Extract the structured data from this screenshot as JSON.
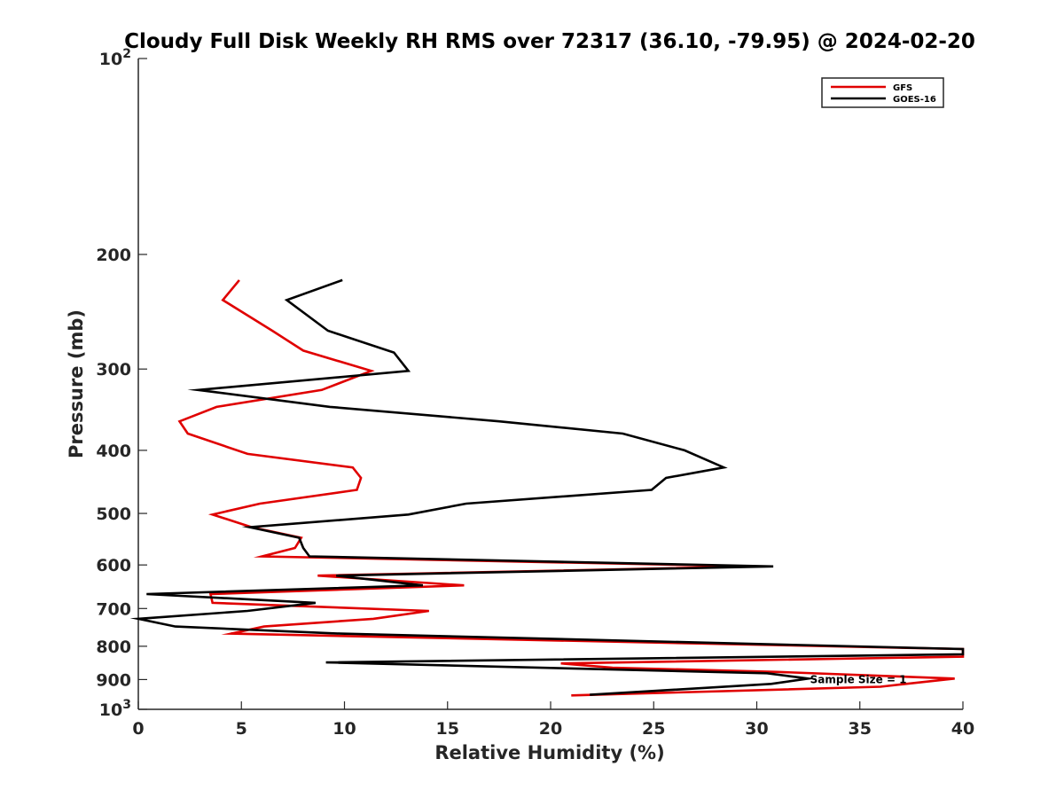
{
  "chart_data": {
    "type": "line",
    "title": "Cloudy Full Disk Weekly RH RMS over 72317 (36.10, -79.95) @ 2024-02-20",
    "xlabel": "Relative Humidity (%)",
    "ylabel": "Pressure (mb)",
    "xlim": [
      0,
      40
    ],
    "ylim": [
      100,
      1000
    ],
    "yscale": "log",
    "y_reversed": true,
    "grid": false,
    "legend_position": "top-right",
    "x_ticks": [
      0,
      5,
      10,
      15,
      20,
      25,
      30,
      35,
      40
    ],
    "y_ticks": [
      {
        "value": 100,
        "label": "10",
        "sup": "2"
      },
      {
        "value": 200,
        "label": "200"
      },
      {
        "value": 300,
        "label": "300"
      },
      {
        "value": 400,
        "label": "400"
      },
      {
        "value": 500,
        "label": "500"
      },
      {
        "value": 600,
        "label": "600"
      },
      {
        "value": 700,
        "label": "700"
      },
      {
        "value": 800,
        "label": "800"
      },
      {
        "value": 900,
        "label": "900"
      },
      {
        "value": 1000,
        "label": "10",
        "sup": "3"
      }
    ],
    "series": [
      {
        "name": "GFS",
        "color": "#e00000",
        "points": [
          [
            4.9,
            219
          ],
          [
            4.1,
            235
          ],
          [
            6.5,
            262
          ],
          [
            8.0,
            281
          ],
          [
            11.3,
            302
          ],
          [
            8.9,
            323
          ],
          [
            3.8,
            343
          ],
          [
            2.0,
            361
          ],
          [
            2.4,
            377
          ],
          [
            5.3,
            405
          ],
          [
            10.4,
            425
          ],
          [
            10.8,
            441
          ],
          [
            10.6,
            460
          ],
          [
            5.9,
            483
          ],
          [
            3.6,
            502
          ],
          [
            5.5,
            525
          ],
          [
            7.9,
            545
          ],
          [
            7.6,
            565
          ],
          [
            6.0,
            582
          ],
          [
            30.0,
            603
          ],
          [
            8.7,
            623
          ],
          [
            15.8,
            645
          ],
          [
            3.5,
            665
          ],
          [
            3.6,
            686
          ],
          [
            14.1,
            706
          ],
          [
            11.4,
            726
          ],
          [
            6.1,
            746
          ],
          [
            4.5,
            765
          ],
          [
            40.0,
            808
          ],
          [
            40.0,
            830
          ],
          [
            20.5,
            850
          ],
          [
            23.0,
            863
          ],
          [
            31.0,
            876
          ],
          [
            39.6,
            897
          ],
          [
            36.0,
            923
          ],
          [
            21.0,
            952
          ]
        ]
      },
      {
        "name": "GOES-16",
        "color": "#000000",
        "points": [
          [
            9.9,
            219
          ],
          [
            7.2,
            235
          ],
          [
            9.2,
            262
          ],
          [
            12.4,
            283
          ],
          [
            13.1,
            302
          ],
          [
            2.9,
            323
          ],
          [
            9.3,
            343
          ],
          [
            17.5,
            361
          ],
          [
            23.5,
            377
          ],
          [
            26.5,
            400
          ],
          [
            28.4,
            425
          ],
          [
            25.6,
            441
          ],
          [
            24.9,
            460
          ],
          [
            15.9,
            483
          ],
          [
            13.1,
            502
          ],
          [
            5.4,
            525
          ],
          [
            7.8,
            545
          ],
          [
            8.0,
            565
          ],
          [
            8.3,
            582
          ],
          [
            30.8,
            603
          ],
          [
            9.6,
            623
          ],
          [
            13.8,
            645
          ],
          [
            0.4,
            665
          ],
          [
            8.6,
            686
          ],
          [
            5.3,
            706
          ],
          [
            0.0,
            726
          ],
          [
            1.8,
            746
          ],
          [
            9.8,
            765
          ],
          [
            40.0,
            808
          ],
          [
            40.0,
            823
          ],
          [
            9.1,
            847
          ],
          [
            30.5,
            880
          ],
          [
            32.5,
            897
          ],
          [
            30.7,
            914
          ],
          [
            21.9,
            950
          ]
        ]
      }
    ],
    "annotations": [
      {
        "text": "Sample Size = 1",
        "x": 32.5,
        "y": 897
      }
    ]
  }
}
